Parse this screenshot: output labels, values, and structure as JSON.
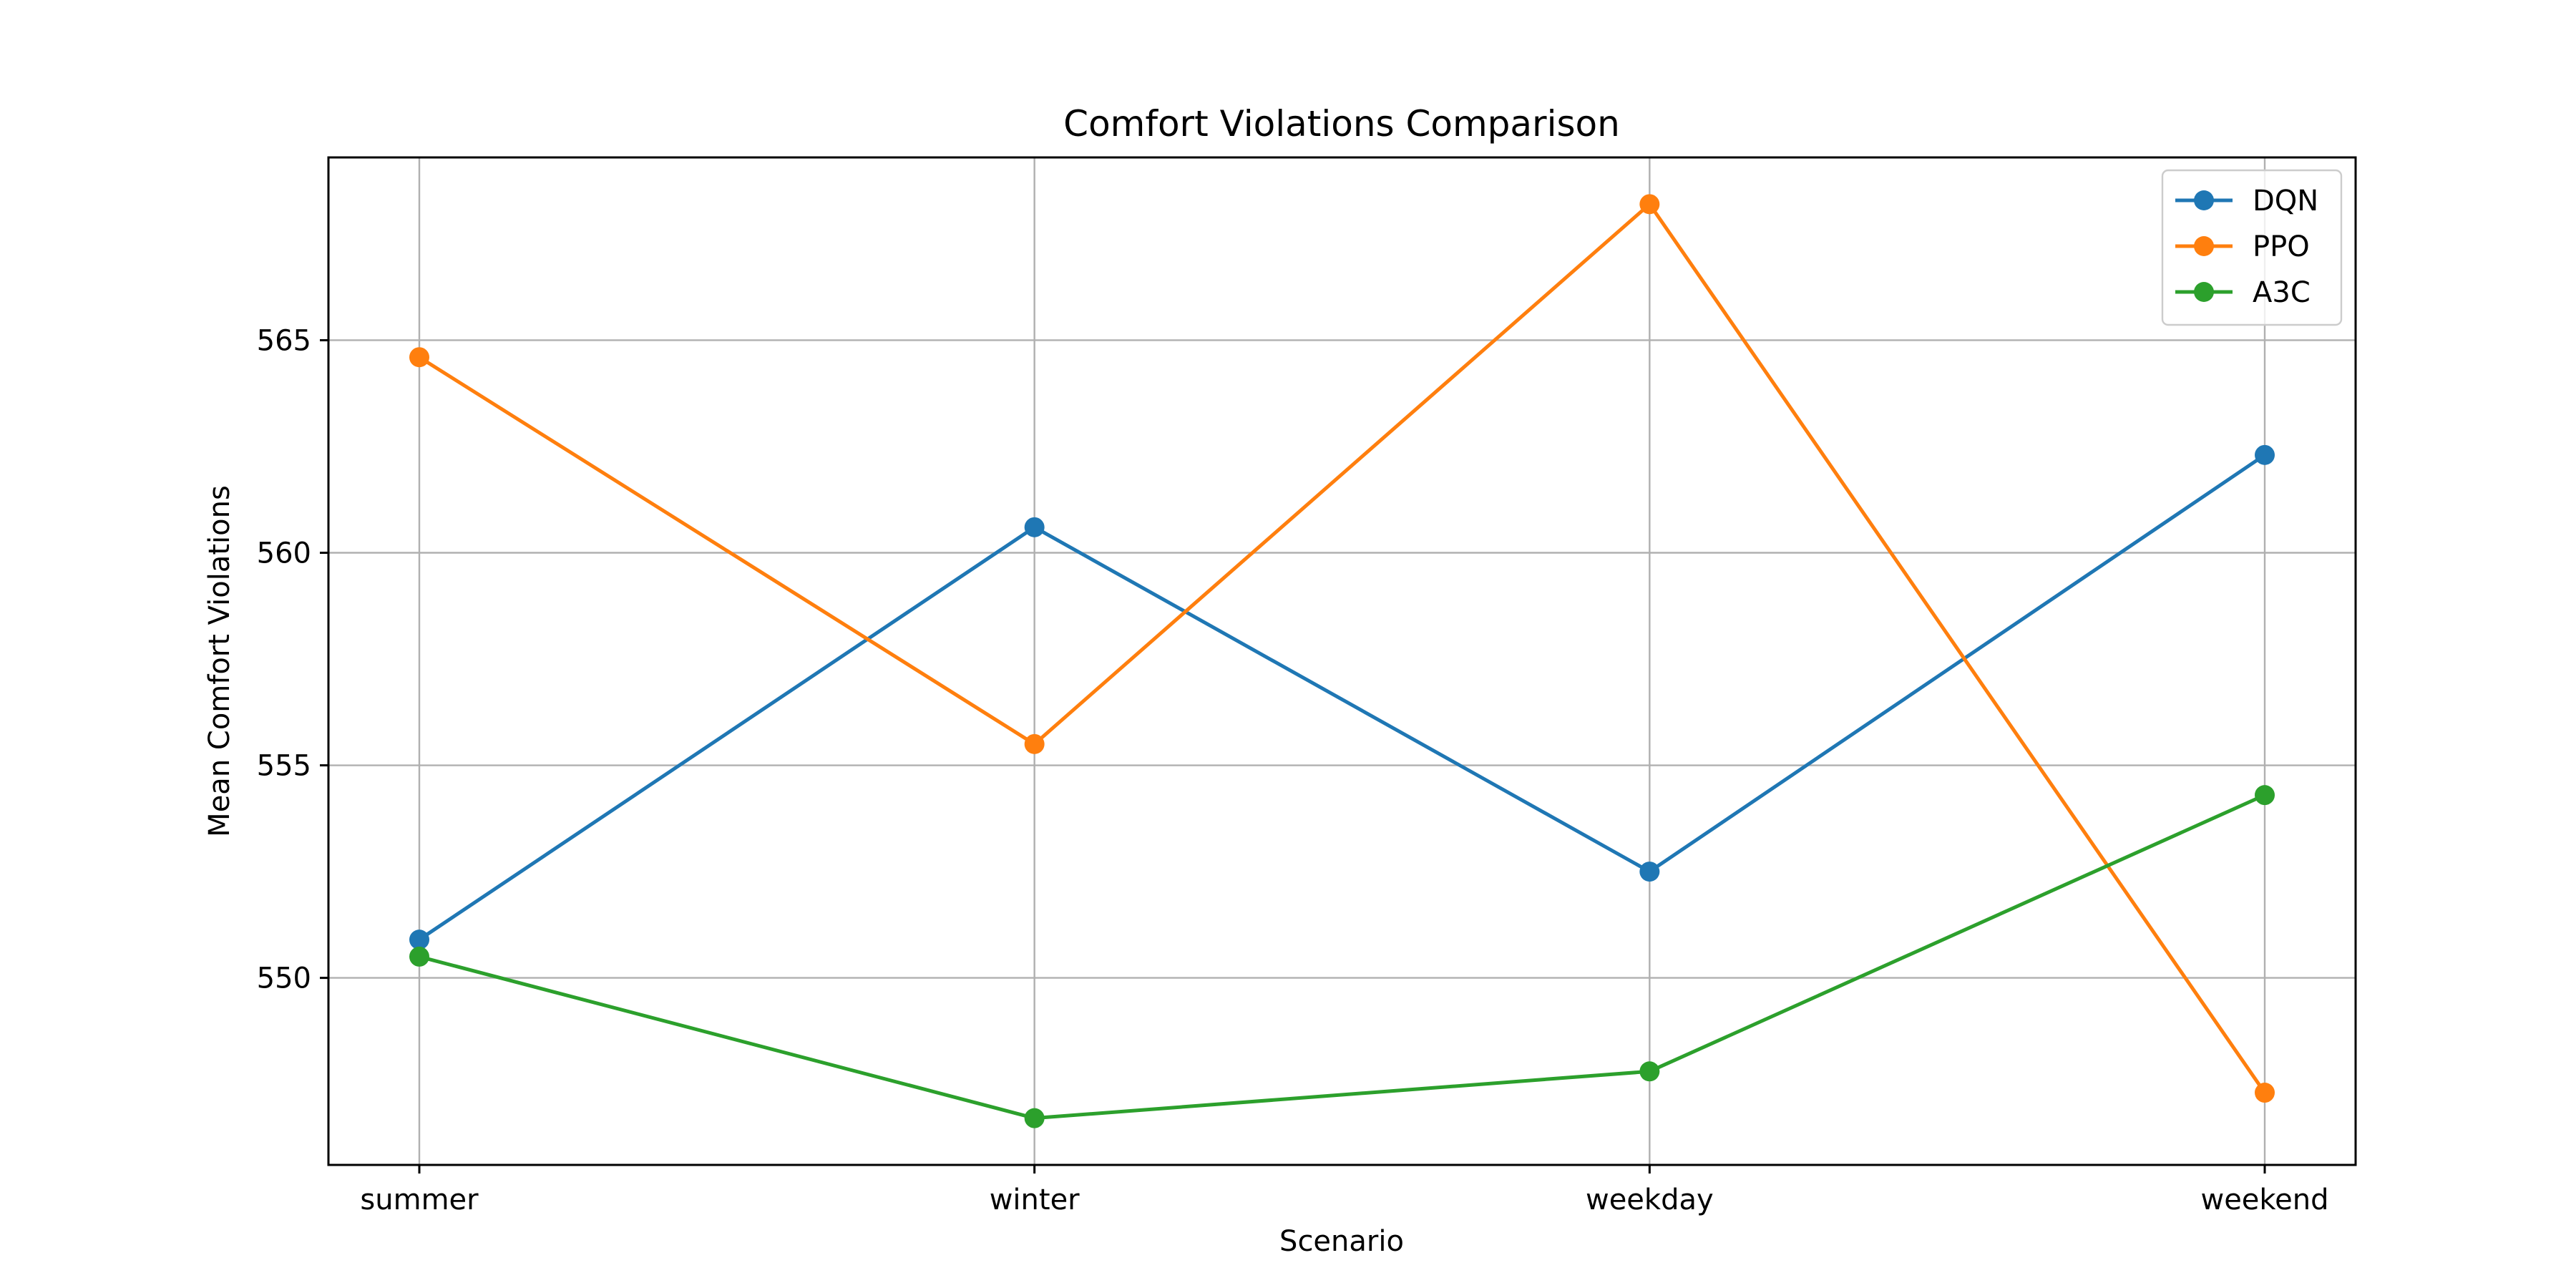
{
  "chart_data": {
    "type": "line",
    "title": "Comfort Violations Comparison",
    "xlabel": "Scenario",
    "ylabel": "Mean Comfort Violations",
    "categories": [
      "summer",
      "winter",
      "weekday",
      "weekend"
    ],
    "ylim": [
      545.6,
      569.3
    ],
    "yticks": [
      550,
      555,
      560,
      565
    ],
    "grid": true,
    "legend_position": "top-right",
    "series": [
      {
        "name": "DQN",
        "color": "#1f77b4",
        "values": [
          550.9,
          560.6,
          552.5,
          562.3
        ]
      },
      {
        "name": "PPO",
        "color": "#ff7f0e",
        "values": [
          564.6,
          555.5,
          568.2,
          547.3
        ]
      },
      {
        "name": "A3C",
        "color": "#2ca02c",
        "values": [
          550.5,
          546.7,
          547.8,
          554.3
        ]
      }
    ]
  }
}
